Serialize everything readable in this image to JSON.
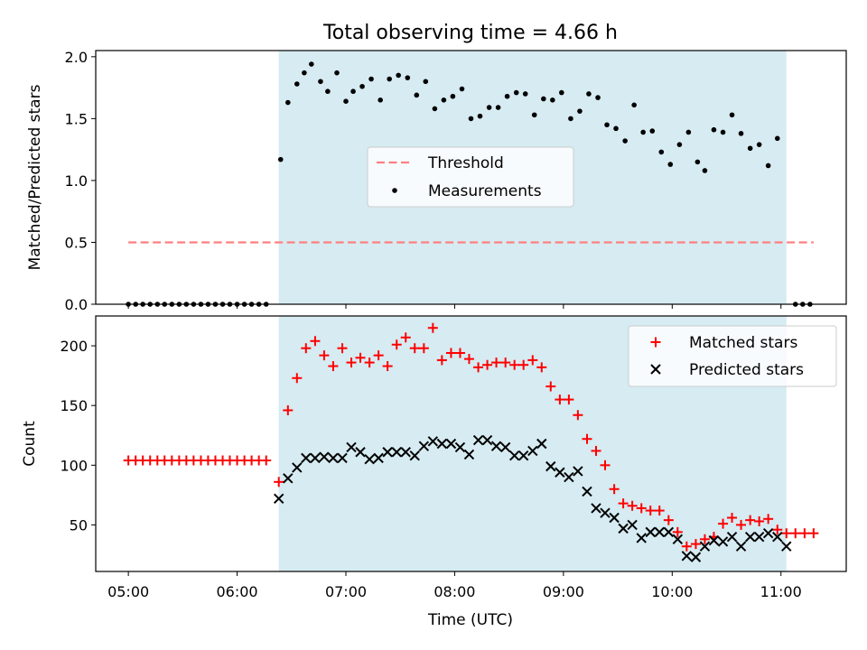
{
  "title": "Total observing time = 4.66 h",
  "colors": {
    "shade": "#add8e6",
    "threshold": "#ff7f7f",
    "matched": "#ff0000",
    "predicted": "#000000",
    "measurement": "#000000"
  },
  "chart_data": [
    {
      "type": "scatter",
      "ylabel": "Matched/Predicted stars",
      "ylim": [
        0,
        2.05
      ],
      "xlim": [
        4.7,
        11.6
      ],
      "yticks": [
        "0.0",
        "0.5",
        "1.0",
        "1.5",
        "2.0"
      ],
      "ytick_values": [
        0,
        0.5,
        1.0,
        1.5,
        2.0
      ],
      "shaded_interval": [
        6.383,
        11.05
      ],
      "legend": [
        "Threshold",
        "Measurements"
      ],
      "threshold": {
        "name": "Threshold",
        "y": 0.5,
        "x": [
          5.0,
          11.3
        ]
      },
      "series": [
        {
          "name": "Measurements",
          "points": [
            [
              5.0,
              0
            ],
            [
              5.067,
              0
            ],
            [
              5.133,
              0
            ],
            [
              5.2,
              0
            ],
            [
              5.267,
              0
            ],
            [
              5.333,
              0
            ],
            [
              5.4,
              0
            ],
            [
              5.467,
              0
            ],
            [
              5.533,
              0
            ],
            [
              5.6,
              0
            ],
            [
              5.667,
              0
            ],
            [
              5.733,
              0
            ],
            [
              5.8,
              0
            ],
            [
              5.867,
              0
            ],
            [
              5.933,
              0
            ],
            [
              6.0,
              0
            ],
            [
              6.067,
              0
            ],
            [
              6.133,
              0
            ],
            [
              6.2,
              0
            ],
            [
              6.267,
              0
            ],
            [
              6.4,
              1.17
            ],
            [
              6.467,
              1.63
            ],
            [
              6.55,
              1.78
            ],
            [
              6.617,
              1.87
            ],
            [
              6.683,
              1.94
            ],
            [
              6.767,
              1.8
            ],
            [
              6.833,
              1.72
            ],
            [
              6.917,
              1.87
            ],
            [
              7.0,
              1.64
            ],
            [
              7.067,
              1.72
            ],
            [
              7.15,
              1.76
            ],
            [
              7.233,
              1.82
            ],
            [
              7.317,
              1.65
            ],
            [
              7.4,
              1.82
            ],
            [
              7.483,
              1.85
            ],
            [
              7.567,
              1.83
            ],
            [
              7.65,
              1.69
            ],
            [
              7.733,
              1.8
            ],
            [
              7.817,
              1.58
            ],
            [
              7.9,
              1.65
            ],
            [
              7.983,
              1.68
            ],
            [
              8.067,
              1.74
            ],
            [
              8.15,
              1.5
            ],
            [
              8.233,
              1.52
            ],
            [
              8.317,
              1.59
            ],
            [
              8.4,
              1.59
            ],
            [
              8.483,
              1.68
            ],
            [
              8.567,
              1.71
            ],
            [
              8.65,
              1.7
            ],
            [
              8.733,
              1.53
            ],
            [
              8.817,
              1.66
            ],
            [
              8.9,
              1.65
            ],
            [
              8.983,
              1.71
            ],
            [
              9.067,
              1.5
            ],
            [
              9.15,
              1.56
            ],
            [
              9.233,
              1.7
            ],
            [
              9.317,
              1.67
            ],
            [
              9.4,
              1.45
            ],
            [
              9.483,
              1.42
            ],
            [
              9.567,
              1.32
            ],
            [
              9.65,
              1.61
            ],
            [
              9.733,
              1.39
            ],
            [
              9.817,
              1.4
            ],
            [
              9.9,
              1.23
            ],
            [
              9.983,
              1.13
            ],
            [
              10.067,
              1.29
            ],
            [
              10.15,
              1.39
            ],
            [
              10.233,
              1.15
            ],
            [
              10.3,
              1.08
            ],
            [
              10.383,
              1.41
            ],
            [
              10.467,
              1.39
            ],
            [
              10.55,
              1.53
            ],
            [
              10.633,
              1.38
            ],
            [
              10.717,
              1.26
            ],
            [
              10.8,
              1.29
            ],
            [
              10.883,
              1.12
            ],
            [
              10.967,
              1.34
            ],
            [
              11.133,
              0
            ],
            [
              11.2,
              0
            ],
            [
              11.267,
              0
            ]
          ]
        }
      ]
    },
    {
      "type": "scatter",
      "xlabel": "Time (UTC)",
      "ylabel": "Count",
      "ylim": [
        11,
        225
      ],
      "xlim": [
        4.7,
        11.6
      ],
      "yticks": [
        "50",
        "100",
        "150",
        "200"
      ],
      "ytick_values": [
        50,
        100,
        150,
        200
      ],
      "xticks": [
        "05:00",
        "06:00",
        "07:00",
        "08:00",
        "09:00",
        "10:00",
        "11:00"
      ],
      "xtick_values": [
        5,
        6,
        7,
        8,
        9,
        10,
        11
      ],
      "shaded_interval": [
        6.383,
        11.05
      ],
      "legend": [
        "Matched stars",
        "Predicted stars"
      ],
      "series": [
        {
          "name": "Matched stars",
          "marker": "+",
          "points": [
            [
              5.0,
              104
            ],
            [
              5.067,
              104
            ],
            [
              5.133,
              104
            ],
            [
              5.2,
              104
            ],
            [
              5.267,
              104
            ],
            [
              5.333,
              104
            ],
            [
              5.4,
              104
            ],
            [
              5.467,
              104
            ],
            [
              5.533,
              104
            ],
            [
              5.6,
              104
            ],
            [
              5.667,
              104
            ],
            [
              5.733,
              104
            ],
            [
              5.8,
              104
            ],
            [
              5.867,
              104
            ],
            [
              5.933,
              104
            ],
            [
              6.0,
              104
            ],
            [
              6.067,
              104
            ],
            [
              6.133,
              104
            ],
            [
              6.2,
              104
            ],
            [
              6.267,
              104
            ],
            [
              6.383,
              86
            ],
            [
              6.467,
              146
            ],
            [
              6.55,
              173
            ],
            [
              6.633,
              198
            ],
            [
              6.717,
              204
            ],
            [
              6.8,
              192
            ],
            [
              6.883,
              183
            ],
            [
              6.967,
              198
            ],
            [
              7.05,
              186
            ],
            [
              7.133,
              190
            ],
            [
              7.217,
              186
            ],
            [
              7.3,
              192
            ],
            [
              7.383,
              183
            ],
            [
              7.467,
              201
            ],
            [
              7.55,
              207
            ],
            [
              7.633,
              198
            ],
            [
              7.717,
              198
            ],
            [
              7.8,
              215
            ],
            [
              7.883,
              188
            ],
            [
              7.967,
              194
            ],
            [
              8.05,
              194
            ],
            [
              8.133,
              189
            ],
            [
              8.217,
              182
            ],
            [
              8.3,
              184
            ],
            [
              8.383,
              186
            ],
            [
              8.467,
              186
            ],
            [
              8.55,
              184
            ],
            [
              8.633,
              184
            ],
            [
              8.717,
              188
            ],
            [
              8.8,
              182
            ],
            [
              8.883,
              166
            ],
            [
              8.967,
              155
            ],
            [
              9.05,
              155
            ],
            [
              9.133,
              142
            ],
            [
              9.217,
              122
            ],
            [
              9.3,
              112
            ],
            [
              9.383,
              100
            ],
            [
              9.467,
              80
            ],
            [
              9.55,
              68
            ],
            [
              9.633,
              66
            ],
            [
              9.717,
              64
            ],
            [
              9.8,
              62
            ],
            [
              9.883,
              62
            ],
            [
              9.967,
              54
            ],
            [
              10.05,
              44
            ],
            [
              10.133,
              32
            ],
            [
              10.217,
              34
            ],
            [
              10.3,
              38
            ],
            [
              10.383,
              40
            ],
            [
              10.467,
              51
            ],
            [
              10.55,
              56
            ],
            [
              10.633,
              50
            ],
            [
              10.717,
              54
            ],
            [
              10.8,
              53
            ],
            [
              10.883,
              55
            ],
            [
              10.967,
              46
            ],
            [
              11.05,
              43
            ],
            [
              11.133,
              43
            ],
            [
              11.217,
              43
            ],
            [
              11.3,
              43
            ]
          ]
        },
        {
          "name": "Predicted stars",
          "marker": "x",
          "points": [
            [
              6.383,
              72
            ],
            [
              6.467,
              89
            ],
            [
              6.55,
              98
            ],
            [
              6.633,
              106
            ],
            [
              6.717,
              106
            ],
            [
              6.8,
              107
            ],
            [
              6.883,
              106
            ],
            [
              6.967,
              106
            ],
            [
              7.05,
              115
            ],
            [
              7.133,
              111
            ],
            [
              7.217,
              105
            ],
            [
              7.3,
              106
            ],
            [
              7.383,
              111
            ],
            [
              7.467,
              111
            ],
            [
              7.55,
              111
            ],
            [
              7.633,
              108
            ],
            [
              7.717,
              116
            ],
            [
              7.8,
              120
            ],
            [
              7.883,
              118
            ],
            [
              7.967,
              118
            ],
            [
              8.05,
              115
            ],
            [
              8.133,
              109
            ],
            [
              8.217,
              121
            ],
            [
              8.3,
              121
            ],
            [
              8.383,
              116
            ],
            [
              8.467,
              115
            ],
            [
              8.55,
              108
            ],
            [
              8.633,
              108
            ],
            [
              8.717,
              112
            ],
            [
              8.8,
              118
            ],
            [
              8.883,
              99
            ],
            [
              8.967,
              94
            ],
            [
              9.05,
              90
            ],
            [
              9.133,
              95
            ],
            [
              9.217,
              78
            ],
            [
              9.3,
              64
            ],
            [
              9.383,
              60
            ],
            [
              9.467,
              56
            ],
            [
              9.55,
              47
            ],
            [
              9.633,
              50
            ],
            [
              9.717,
              39
            ],
            [
              9.8,
              44
            ],
            [
              9.883,
              44
            ],
            [
              9.967,
              44
            ],
            [
              10.05,
              38
            ],
            [
              10.133,
              24
            ],
            [
              10.217,
              23
            ],
            [
              10.3,
              32
            ],
            [
              10.383,
              37
            ],
            [
              10.467,
              36
            ],
            [
              10.55,
              40
            ],
            [
              10.633,
              32
            ],
            [
              10.717,
              40
            ],
            [
              10.8,
              40
            ],
            [
              10.883,
              43
            ],
            [
              10.967,
              40
            ],
            [
              11.05,
              32
            ]
          ]
        }
      ]
    }
  ]
}
